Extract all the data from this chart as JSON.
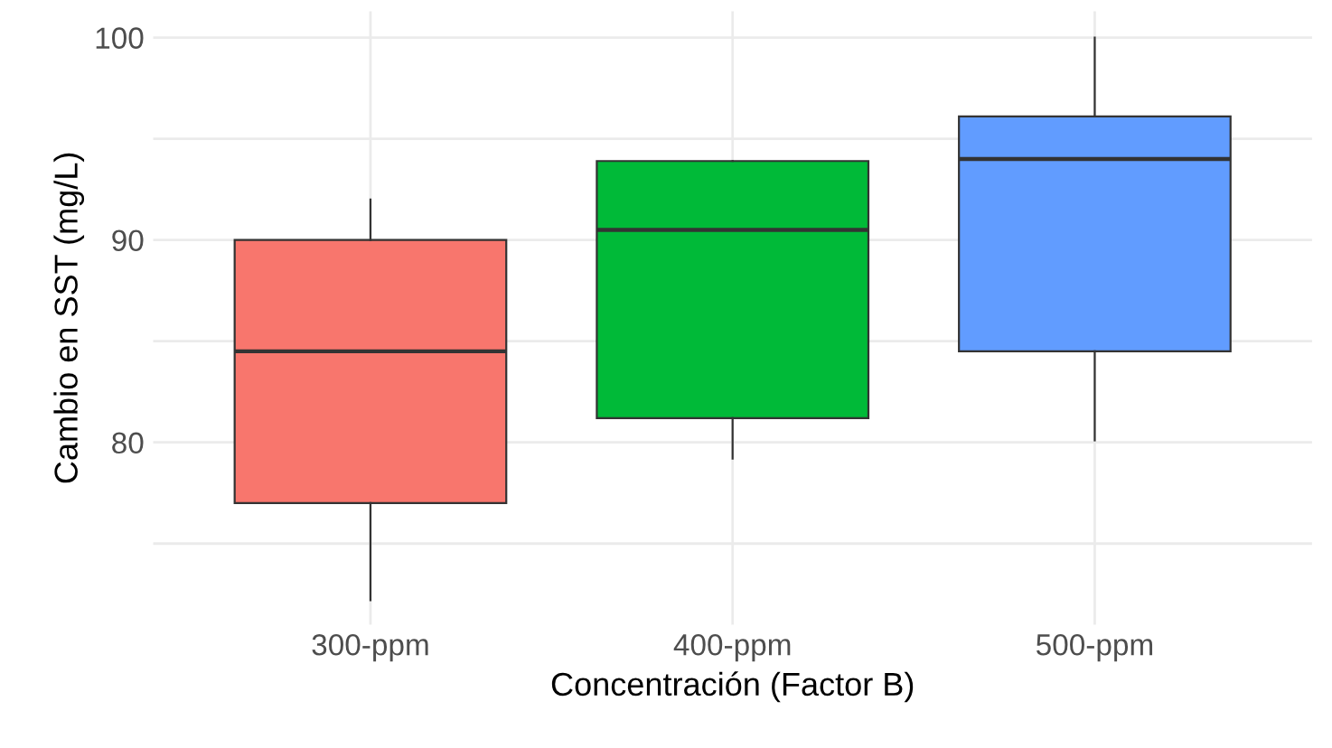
{
  "chart_data": {
    "type": "box",
    "xlabel": "Concentración (Factor B)",
    "ylabel": "Cambio en SST (mg/L)",
    "categories": [
      "300-ppm",
      "400-ppm",
      "500-ppm"
    ],
    "colors": [
      "#f8766d",
      "#00ba38",
      "#619cff"
    ],
    "boxes": [
      {
        "low": 72.2,
        "q1": 77,
        "median": 84.5,
        "q3": 90,
        "high": 92
      },
      {
        "low": 79.2,
        "q1": 81.2,
        "median": 90.5,
        "q3": 93.9,
        "high": 93.9
      },
      {
        "low": 80.1,
        "q1": 84.5,
        "median": 94,
        "q3": 96.1,
        "high": 100
      }
    ],
    "ylim": [
      71,
      101.3
    ],
    "yticks": [
      {
        "value": 75,
        "label": null
      },
      80,
      {
        "value": 85,
        "label": null
      },
      90,
      {
        "value": 95,
        "label": null
      },
      100
    ],
    "grid": true
  }
}
